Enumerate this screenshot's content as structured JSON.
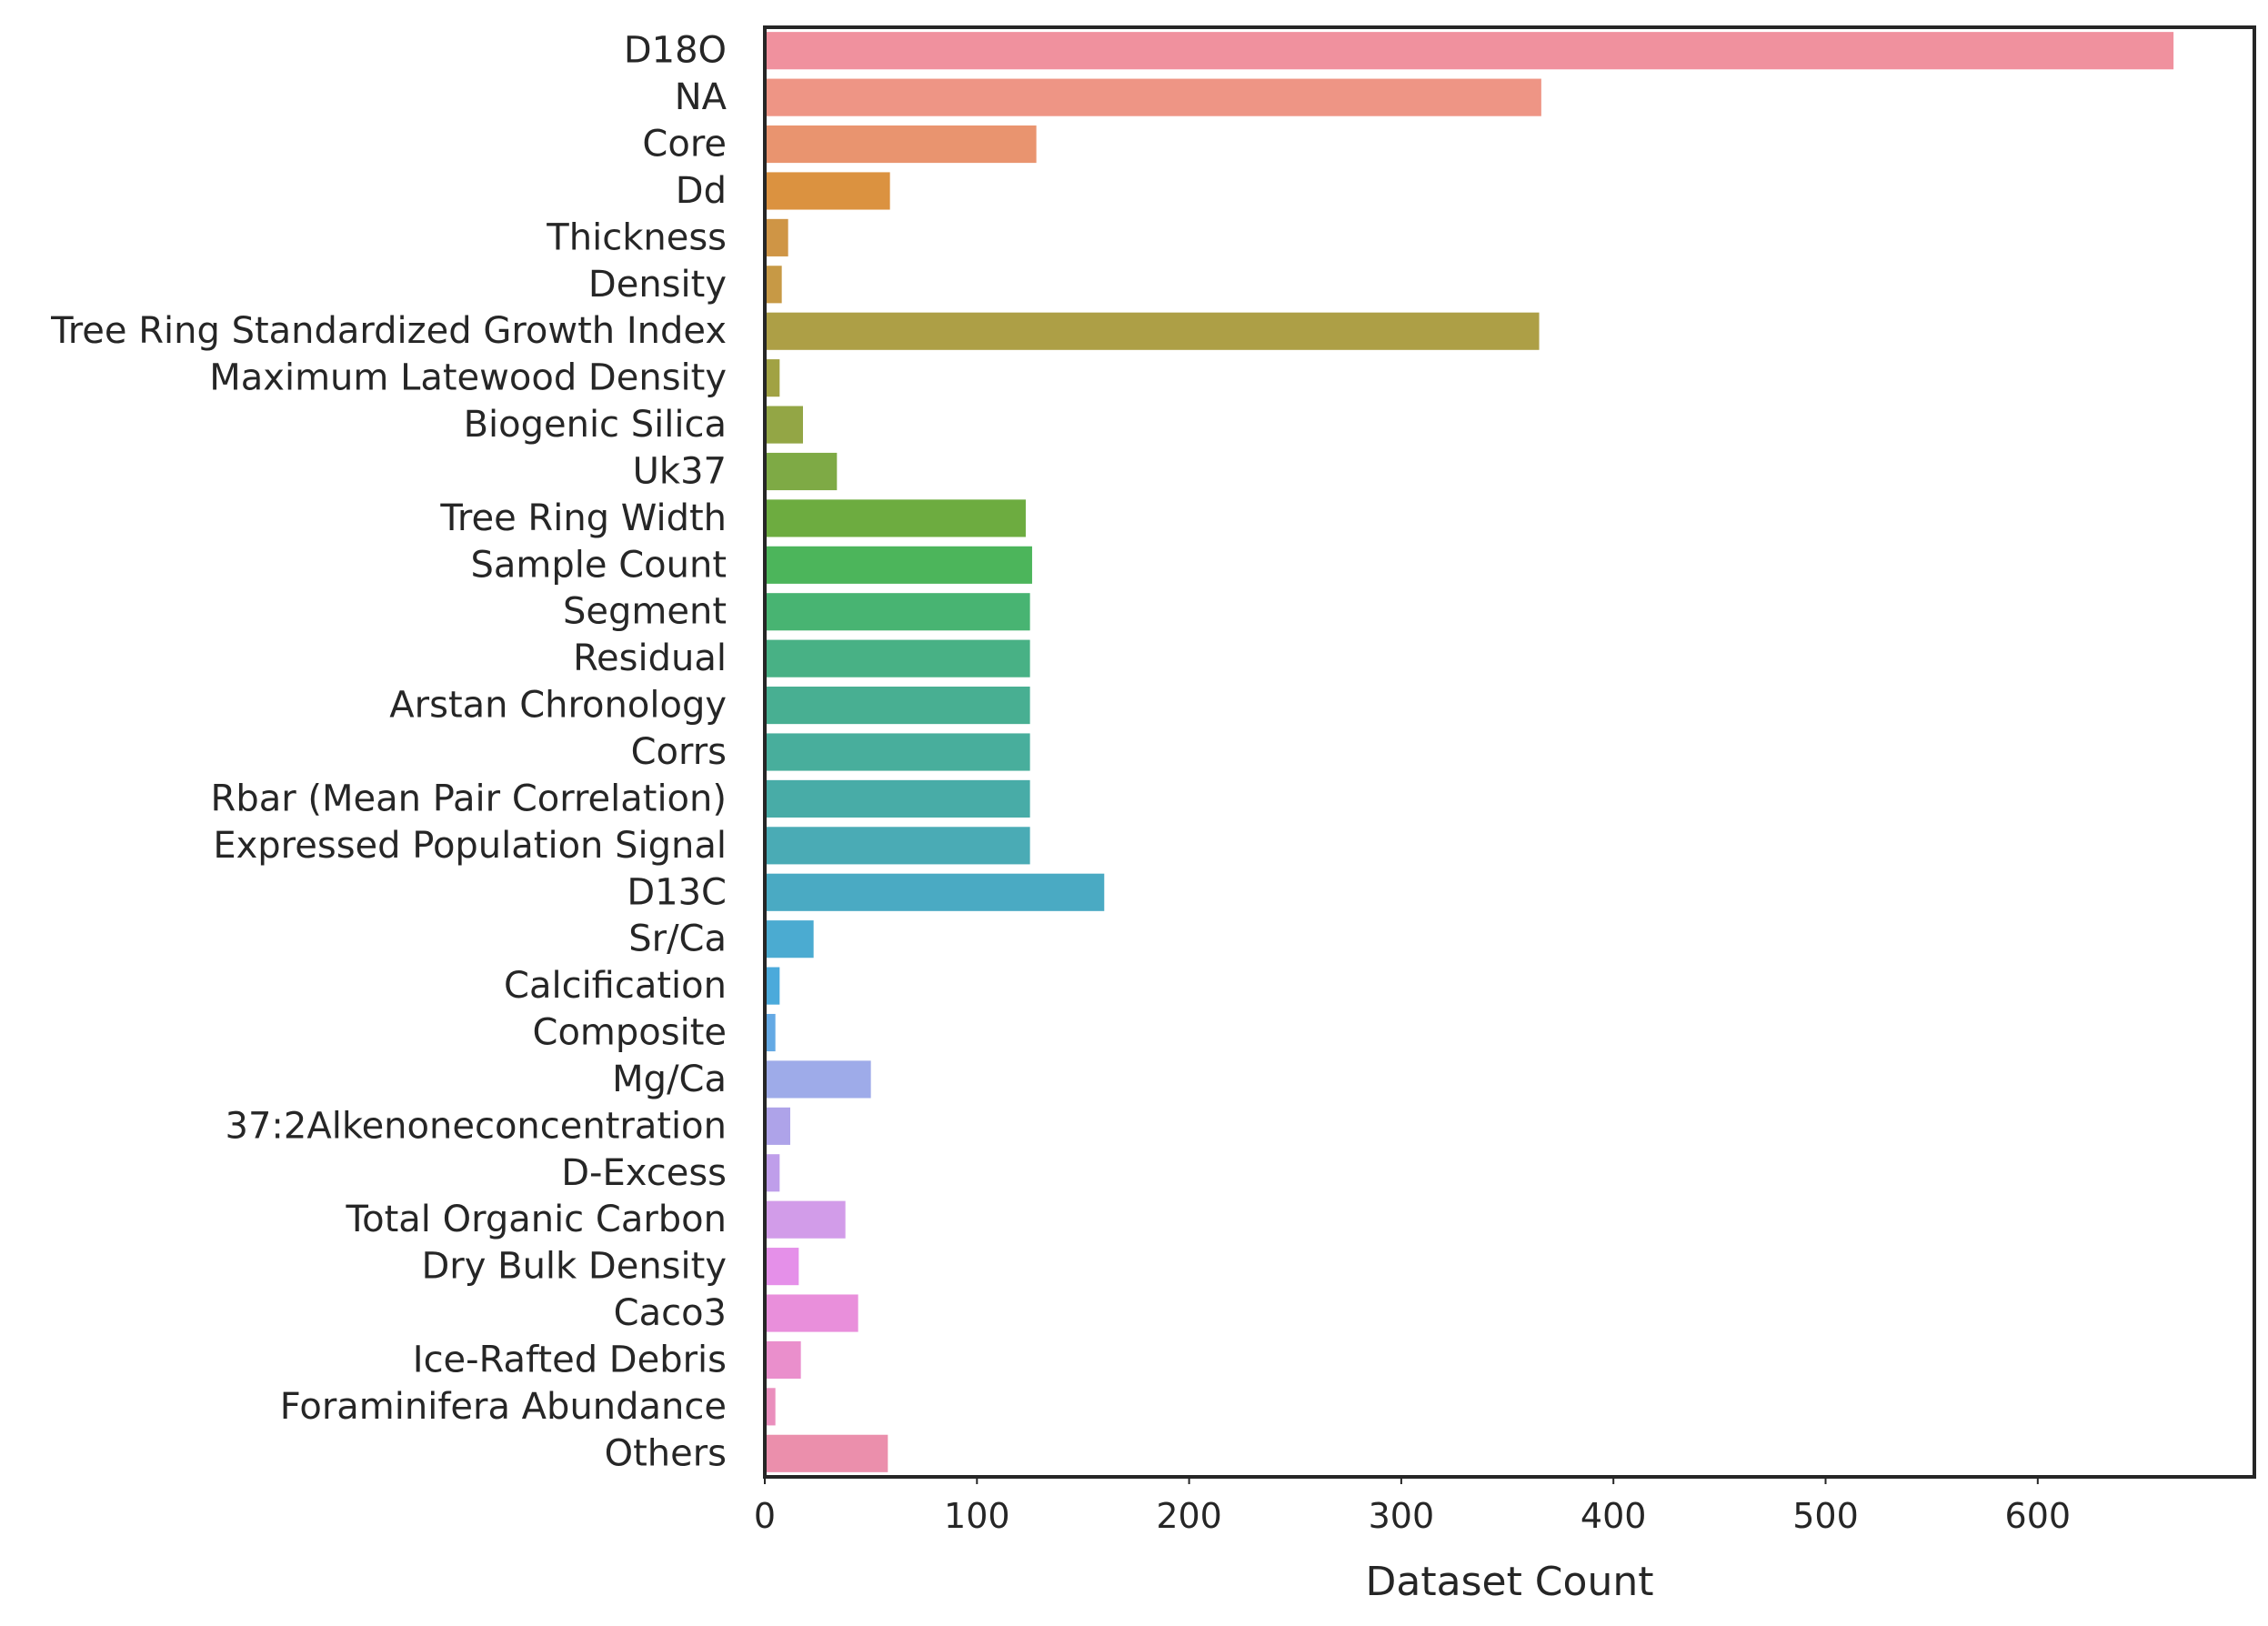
{
  "chart_data": {
    "type": "bar",
    "orientation": "horizontal",
    "title": "",
    "xlabel": "Dataset Count",
    "ylabel": "",
    "xlim": [
      0,
      700
    ],
    "x_ticks": [
      0,
      100,
      200,
      300,
      400,
      500,
      600
    ],
    "grid": false,
    "legend": "none",
    "categories": [
      "D18O",
      "NA",
      "Core",
      "Dd",
      "Thickness",
      "Density",
      "Tree Ring Standardized Growth Index",
      "Maximum Latewood Density",
      "Biogenic Silica",
      "Uk37",
      "Tree Ring Width",
      "Sample Count",
      "Segment",
      "Residual",
      "Arstan Chronology",
      "Corrs",
      "Rbar (Mean Pair Correlation)",
      "Expressed Population Signal",
      "D13C",
      "Sr/Ca",
      "Calcification",
      "Composite",
      "Mg/Ca",
      "37:2Alkenoneconcentration",
      "D-Excess",
      "Total Organic Carbon",
      "Dry Bulk Density",
      "Caco3",
      "Ice-Rafted Debris",
      "Foraminifera Abundance",
      "Others"
    ],
    "values": [
      664,
      366,
      128,
      59,
      11,
      8,
      365,
      7,
      18,
      34,
      123,
      126,
      125,
      125,
      125,
      125,
      125,
      125,
      160,
      23,
      7,
      5,
      50,
      12,
      7,
      38,
      16,
      44,
      17,
      5,
      58
    ],
    "colors": [
      "#f0919e",
      "#ee9585",
      "#e9946f",
      "#db9240",
      "#cf9545",
      "#c79945",
      "#ad9f46",
      "#a1a243",
      "#93a645",
      "#7eaa45",
      "#6dac40",
      "#4cb55b",
      "#48b472",
      "#48b185",
      "#48af92",
      "#48ae9c",
      "#48aca7",
      "#4aabb5",
      "#4aaac3",
      "#4babd1",
      "#4baadb",
      "#64a9e4",
      "#9eabe9",
      "#aea3e9",
      "#bf9eea",
      "#d29ce9",
      "#e590e9",
      "#e98fdb",
      "#ea8fcc",
      "#ea8fbd",
      "#eb8fac"
    ]
  }
}
